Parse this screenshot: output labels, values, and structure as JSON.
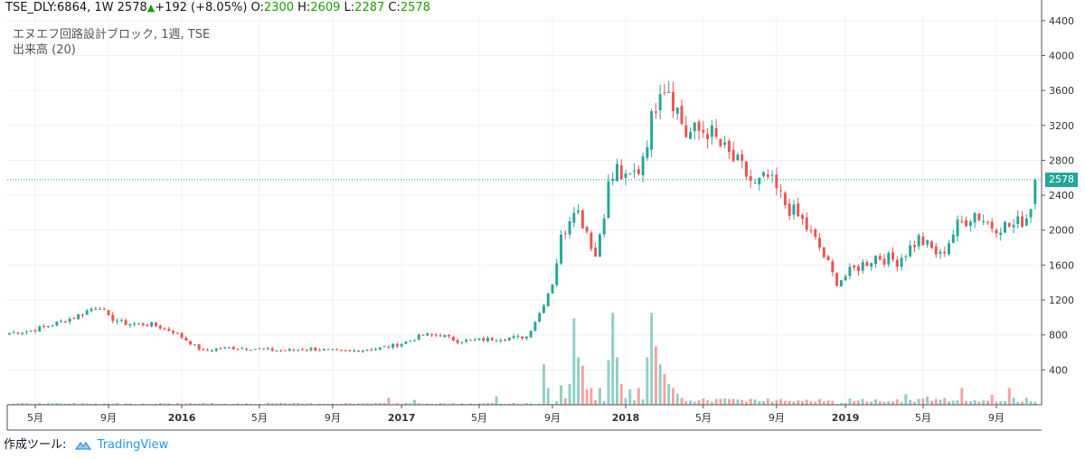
{
  "header": {
    "symbol": "TSE_DLY:6864, 1W",
    "last": "2578",
    "change": "+192 (+8.05%)",
    "o_label": "O:",
    "o_val": "2300",
    "h_label": "H:",
    "h_val": "2609",
    "l_label": "L:",
    "l_val": "2287",
    "c_label": "C:",
    "c_val": "2578"
  },
  "legend": {
    "title": "エヌエフ回路設計ブロック, 1週, TSE",
    "volume": "出来高 (20)"
  },
  "footer": {
    "made_with": "作成ツール:",
    "brand": "TradingView"
  },
  "price_tag": "2578",
  "colors": {
    "up": "#26a69a",
    "down": "#ef5350",
    "up_vol": "#8fcfc7",
    "down_vol": "#f4a3a0",
    "grid": "#eef0f3",
    "axis": "#555555",
    "priceline": "#26a69a"
  },
  "chart_data": {
    "type": "candlestick",
    "ylim": [
      0,
      4450
    ],
    "y_ticks": [
      400,
      800,
      1200,
      1600,
      2000,
      2400,
      2800,
      3200,
      3600,
      4000,
      4400
    ],
    "x_labels": [
      "5月",
      "9月",
      "2016",
      "5月",
      "9月",
      "2017",
      "5月",
      "9月",
      "2018",
      "5月",
      "9月",
      "2019",
      "5月",
      "9月"
    ],
    "x_label_weeks": [
      6,
      23,
      40,
      58,
      75,
      91,
      109,
      126,
      143,
      161,
      178,
      194,
      212,
      229
    ],
    "week_count": 240,
    "last_price": 2578,
    "anchors": [
      [
        0,
        820
      ],
      [
        5,
        850
      ],
      [
        10,
        920
      ],
      [
        15,
        1000
      ],
      [
        19,
        1100
      ],
      [
        21,
        1130
      ],
      [
        23,
        1000
      ],
      [
        27,
        930
      ],
      [
        33,
        920
      ],
      [
        38,
        840
      ],
      [
        45,
        610
      ],
      [
        49,
        650
      ],
      [
        55,
        650
      ],
      [
        63,
        620
      ],
      [
        70,
        640
      ],
      [
        78,
        610
      ],
      [
        86,
        650
      ],
      [
        91,
        700
      ],
      [
        96,
        800
      ],
      [
        100,
        800
      ],
      [
        104,
        730
      ],
      [
        108,
        740
      ],
      [
        114,
        760
      ],
      [
        120,
        780
      ],
      [
        123,
        1050
      ],
      [
        126,
        1400
      ],
      [
        128,
        1900
      ],
      [
        131,
        2300
      ],
      [
        134,
        2000
      ],
      [
        136,
        1700
      ],
      [
        139,
        2500
      ],
      [
        141,
        2700
      ],
      [
        143,
        2550
      ],
      [
        146,
        2700
      ],
      [
        149,
        3250
      ],
      [
        151,
        3700
      ],
      [
        153,
        3650
      ],
      [
        157,
        3100
      ],
      [
        162,
        3150
      ],
      [
        166,
        2900
      ],
      [
        170,
        2700
      ],
      [
        173,
        2500
      ],
      [
        176,
        2600
      ],
      [
        180,
        2300
      ],
      [
        184,
        2100
      ],
      [
        188,
        1800
      ],
      [
        192,
        1400
      ],
      [
        196,
        1550
      ],
      [
        201,
        1700
      ],
      [
        206,
        1650
      ],
      [
        211,
        1900
      ],
      [
        216,
        1700
      ],
      [
        220,
        2050
      ],
      [
        224,
        2200
      ],
      [
        228,
        2050
      ],
      [
        233,
        2050
      ],
      [
        236,
        2150
      ],
      [
        237,
        2300
      ],
      [
        238,
        2578
      ]
    ],
    "volume_spikes": [
      [
        124,
        290
      ],
      [
        125,
        120
      ],
      [
        128,
        140
      ],
      [
        130,
        150
      ],
      [
        131,
        620
      ],
      [
        132,
        340
      ],
      [
        133,
        280
      ],
      [
        134,
        110
      ],
      [
        135,
        120
      ],
      [
        137,
        120
      ],
      [
        139,
        320
      ],
      [
        140,
        660
      ],
      [
        141,
        340
      ],
      [
        142,
        150
      ],
      [
        144,
        110
      ],
      [
        146,
        120
      ],
      [
        148,
        340
      ],
      [
        149,
        660
      ],
      [
        150,
        420
      ],
      [
        151,
        290
      ],
      [
        152,
        220
      ],
      [
        153,
        150
      ],
      [
        154,
        120
      ],
      [
        155,
        80
      ],
      [
        88,
        50
      ],
      [
        94,
        35
      ],
      [
        113,
        60
      ],
      [
        221,
        120
      ],
      [
        232,
        120
      ],
      [
        228,
        70
      ],
      [
        208,
        75
      ],
      [
        213,
        60
      ]
    ]
  }
}
